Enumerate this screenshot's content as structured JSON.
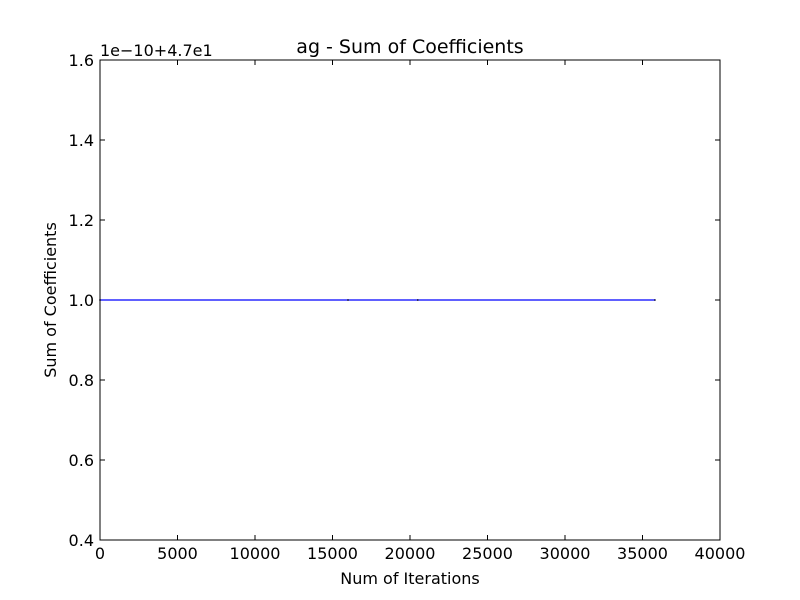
{
  "chart_data": {
    "type": "line",
    "title": "ag - Sum of Coefficients",
    "xlabel": "Num of Iterations",
    "ylabel": "Sum of Coefficients",
    "y_offset_text": "1e−10+4.7e1",
    "xlim": [
      0,
      40000
    ],
    "ylim": [
      0.4,
      1.6
    ],
    "x_ticks": [
      0,
      5000,
      10000,
      15000,
      20000,
      25000,
      30000,
      35000,
      40000
    ],
    "x_tick_labels": [
      "0",
      "5000",
      "10000",
      "15000",
      "20000",
      "25000",
      "30000",
      "35000",
      "40000"
    ],
    "y_ticks": [
      0.4,
      0.6,
      0.8,
      1.0,
      1.2,
      1.4,
      1.6
    ],
    "y_tick_labels": [
      "0.4",
      "0.6",
      "0.8",
      "1.0",
      "1.2",
      "1.4",
      "1.6"
    ],
    "grid": false,
    "legend": "none",
    "series": [
      {
        "color": "#0000ff",
        "x": [
          0,
          16000,
          20500,
          35800
        ],
        "y": [
          1.0,
          1.0,
          1.0,
          1.0
        ]
      }
    ]
  }
}
